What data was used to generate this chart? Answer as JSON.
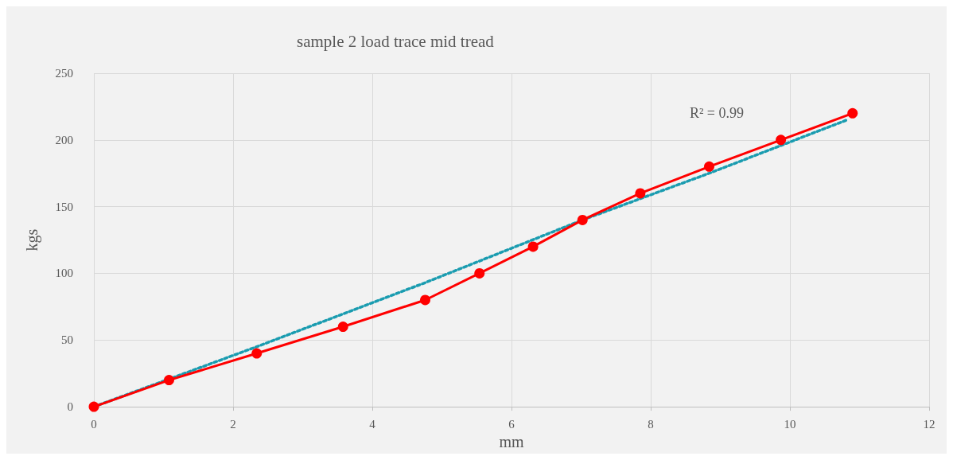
{
  "chart_data": {
    "type": "line",
    "title": "sample 2 load trace mid tread",
    "xlabel": "mm",
    "ylabel": "kgs",
    "annotations": [
      "R² = 0.99"
    ],
    "series": [
      {
        "color": "#ff0000",
        "x": [
          0,
          1.08,
          2.34,
          3.58,
          4.76,
          5.54,
          6.31,
          7.02,
          7.85,
          8.84,
          9.87,
          10.9
        ],
        "values": [
          0,
          20,
          40,
          60,
          80,
          100,
          120,
          140,
          160,
          180,
          200,
          220
        ],
        "marker": "circle",
        "line_style": "solid"
      },
      {
        "type": "line",
        "color": "#1a9cb0",
        "x": [
          0,
          2.34,
          4.76,
          7.02,
          8.84,
          10.82
        ],
        "values": [
          0,
          45,
          93,
          140,
          175,
          215
        ],
        "marker": "none",
        "line_style": "dotted"
      }
    ],
    "xlim": [
      0,
      12
    ],
    "xticks": [
      0,
      2,
      4,
      6,
      8,
      10,
      12
    ],
    "ylim": [
      0,
      250
    ],
    "yticks": [
      0,
      50,
      100,
      150,
      200,
      250
    ],
    "grid": true
  }
}
